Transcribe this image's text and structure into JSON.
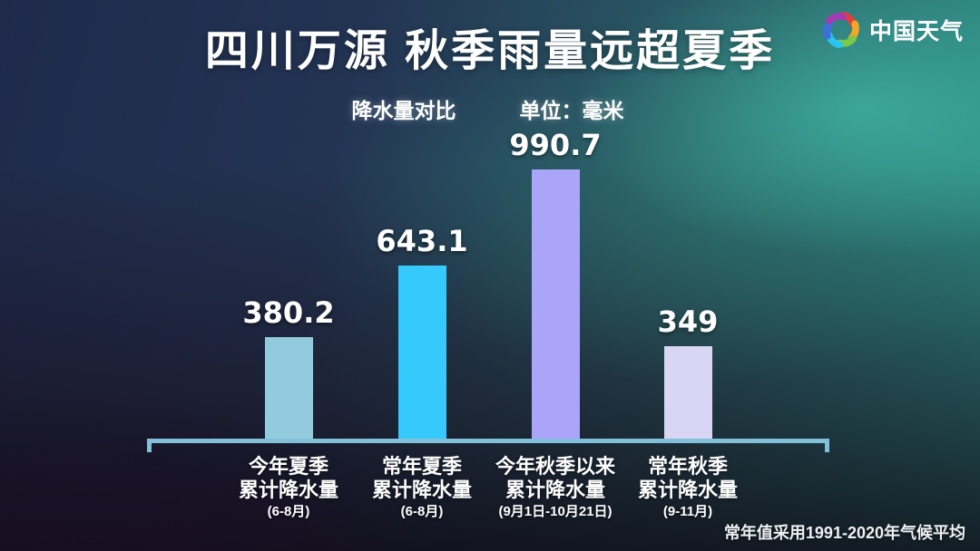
{
  "title": "四川万源 秋季雨量远超夏季",
  "logo": {
    "text": "中国天气",
    "petal_colors": [
      "#e23c3f",
      "#f6a623",
      "#7ac943",
      "#29c4f0",
      "#3b6fe0",
      "#a43bb5"
    ]
  },
  "footnote": "常年值采用1991-2020年气候平均",
  "chart_data": {
    "type": "bar",
    "title": "降水量对比",
    "unit_label": "单位：毫米",
    "categories": [
      "今年夏季累计降水量 (6-8月)",
      "常年夏季累计降水量 (6-8月)",
      "今年秋季以来累计降水量 (9月1日-10月21日)",
      "常年秋季累计降水量 (9-11月)"
    ],
    "values": [
      380.2,
      643.1,
      990.7,
      349
    ],
    "xlabel": "",
    "ylabel": "",
    "ylim": [
      0,
      1050
    ],
    "grid": false,
    "legend": false,
    "axis_color": "#82c0d9",
    "bars": [
      {
        "label_line1": "今年夏季",
        "label_line2": "累计降水量",
        "period": "(6-8月)",
        "value": 380.2,
        "color": "#92cbdd"
      },
      {
        "label_line1": "常年夏季",
        "label_line2": "累计降水量",
        "period": "(6-8月)",
        "value": 643.1,
        "color": "#36c9fb"
      },
      {
        "label_line1": "今年秋季以来",
        "label_line2": "累计降水量",
        "period": "(9月1日-10月21日)",
        "value": 990.7,
        "color": "#aba5fa"
      },
      {
        "label_line1": "常年秋季",
        "label_line2": "累计降水量",
        "period": "(9-11月)",
        "value": 349,
        "color": "#d9d6f5"
      }
    ]
  }
}
